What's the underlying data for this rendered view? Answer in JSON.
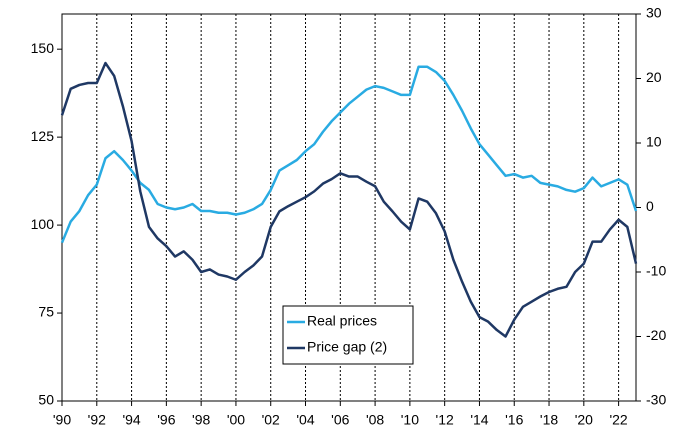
{
  "chart_data": {
    "type": "line",
    "x": [
      1990,
      1990.5,
      1991,
      1991.5,
      1992,
      1992.5,
      1993,
      1993.5,
      1994,
      1994.5,
      1995,
      1995.5,
      1996,
      1996.5,
      1997,
      1997.5,
      1998,
      1998.5,
      1999,
      1999.5,
      2000,
      2000.5,
      2001,
      2001.5,
      2002,
      2002.5,
      2003,
      2003.5,
      2004,
      2004.5,
      2005,
      2005.5,
      2006,
      2006.5,
      2007,
      2007.5,
      2008,
      2008.5,
      2009,
      2009.5,
      2010,
      2010.5,
      2011,
      2011.5,
      2012,
      2012.5,
      2013,
      2013.5,
      2014,
      2014.5,
      2015,
      2015.5,
      2016,
      2016.5,
      2017,
      2017.5,
      2018,
      2018.5,
      2019,
      2019.5,
      2020,
      2020.5,
      2021,
      2021.5,
      2022,
      2022.5,
      2023
    ],
    "series": [
      {
        "name": "Real prices",
        "color": "#29abe2",
        "axis": "y",
        "values": [
          95,
          101,
          104,
          108.5,
          111.5,
          119,
          121,
          118.5,
          115.5,
          112,
          110,
          106,
          105,
          104.5,
          105,
          106,
          104,
          104,
          103.5,
          103.5,
          103,
          103.5,
          104.5,
          106,
          110,
          115.5,
          117,
          118.5,
          121,
          123,
          126.5,
          129.5,
          132,
          134.5,
          136.5,
          138.5,
          139.5,
          139,
          138,
          137,
          137,
          145,
          145,
          143.5,
          141,
          137,
          132.5,
          127.5,
          123,
          120,
          117,
          114,
          114.5,
          113.5,
          114,
          112,
          111.5,
          111,
          110,
          109.5,
          110.5,
          113.5,
          111,
          112,
          113,
          111.5,
          104
        ]
      },
      {
        "name": "Price gap (2)",
        "color": "#1f3864",
        "axis": "y2",
        "values": [
          14.3,
          18.4,
          19,
          19.3,
          19.3,
          22.4,
          20.4,
          15.7,
          10.3,
          2.5,
          -3,
          -4.8,
          -6,
          -7.6,
          -6.8,
          -8.1,
          -10,
          -9.6,
          -10.4,
          -10.7,
          -11.2,
          -10,
          -9,
          -7.6,
          -3,
          -0.6,
          0.2,
          0.9,
          1.6,
          2.5,
          3.7,
          4.4,
          5.3,
          4.8,
          4.8,
          4,
          3.3,
          0.9,
          -0.6,
          -2.2,
          -3.4,
          1.4,
          0.9,
          -0.9,
          -3.7,
          -8.1,
          -11.5,
          -14.6,
          -17,
          -17.7,
          -19,
          -20,
          -17.4,
          -15.4,
          -14.6,
          -13.8,
          -13.1,
          -12.6,
          -12.3,
          -10,
          -8.7,
          -5.3,
          -5.3,
          -3.4,
          -1.9,
          -3,
          -8.7
        ]
      }
    ],
    "xlim": [
      1990,
      2023
    ],
    "xticks": [
      {
        "value": 1990,
        "label": "'90"
      },
      {
        "value": 1992,
        "label": "'92"
      },
      {
        "value": 1994,
        "label": "'94"
      },
      {
        "value": 1996,
        "label": "'96"
      },
      {
        "value": 1998,
        "label": "'98"
      },
      {
        "value": 2000,
        "label": "'00"
      },
      {
        "value": 2002,
        "label": "'02"
      },
      {
        "value": 2004,
        "label": "'04"
      },
      {
        "value": 2006,
        "label": "'06"
      },
      {
        "value": 2008,
        "label": "'08"
      },
      {
        "value": 2010,
        "label": "'10"
      },
      {
        "value": 2012,
        "label": "'12"
      },
      {
        "value": 2014,
        "label": "'14"
      },
      {
        "value": 2016,
        "label": "'16"
      },
      {
        "value": 2018,
        "label": "'18"
      },
      {
        "value": 2020,
        "label": "'20"
      },
      {
        "value": 2022,
        "label": "'22"
      }
    ],
    "ylim": [
      50,
      160
    ],
    "yticks": [
      50,
      75,
      100,
      125,
      150
    ],
    "y2lim": [
      -30,
      30
    ],
    "y2ticks": [
      -30,
      -20,
      -10,
      0,
      10,
      20,
      30
    ],
    "grid": true,
    "legend": "lower center"
  }
}
